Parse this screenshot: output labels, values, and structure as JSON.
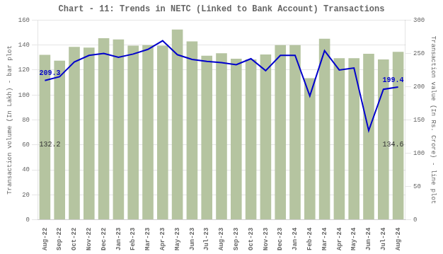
{
  "chart_data": {
    "type": "bar",
    "title": "Chart - 11: Trends in NETC (Linked to Bank Account) Transactions",
    "categories": [
      "Aug-22",
      "Sep-22",
      "Oct-22",
      "Nov-22",
      "Dec-22",
      "Jan-23",
      "Feb-23",
      "Mar-23",
      "Apr-23",
      "May-23",
      "Jun-23",
      "Jul-23",
      "Aug-23",
      "Sep-23",
      "Oct-23",
      "Nov-23",
      "Dec-23",
      "Jan-24",
      "Feb-24",
      "Mar-24",
      "Apr-24",
      "May-24",
      "Jun-24",
      "Jul-24",
      "Aug-24"
    ],
    "series": [
      {
        "type": "bar",
        "color": "#b5c4a0",
        "values": [
          132.2,
          127.5,
          138.5,
          138.0,
          145.5,
          144.5,
          139.5,
          140.0,
          139.5,
          152.5,
          143.0,
          131.5,
          133.5,
          129.0,
          128.5,
          132.5,
          140.0,
          140.0,
          113.5,
          145.0,
          129.5,
          129.5,
          133.0,
          128.5,
          134.6
        ]
      },
      {
        "type": "line",
        "color": "#0000cc",
        "axis": "y2",
        "values": [
          209.3,
          215.0,
          237.0,
          247.0,
          250.0,
          244.0,
          249.0,
          256.0,
          269.0,
          248.0,
          241.0,
          238.0,
          236.0,
          233.0,
          242.0,
          224.0,
          247.0,
          247.0,
          186.0,
          254.0,
          225.0,
          228.0,
          134.0,
          196.0,
          199.4
        ]
      }
    ],
    "ylabel": "Transaction volume (In Lakh) - bar plot",
    "y2label": "Transaction value (In Rs. Crore) - line plot",
    "ylim": [
      0,
      160
    ],
    "yticks": [
      0,
      20,
      40,
      60,
      80,
      100,
      120,
      140,
      160
    ],
    "y2lim": [
      0,
      300
    ],
    "y2ticks": [
      0,
      50,
      100,
      150,
      200,
      250,
      300
    ],
    "grid": true,
    "annotations": [
      {
        "text": "132.2",
        "x": "Aug-22",
        "y": 60,
        "axis": "y",
        "color": "#333333"
      },
      {
        "text": "134.6",
        "x": "Aug-24",
        "y": 60,
        "axis": "y",
        "color": "#333333"
      },
      {
        "text": "209.3",
        "x": "Aug-22",
        "y": 209.3,
        "axis": "y2",
        "color": "#0000cc"
      },
      {
        "text": "199.4",
        "x": "Aug-24",
        "y": 199.4,
        "axis": "y2",
        "color": "#0000cc"
      }
    ]
  }
}
